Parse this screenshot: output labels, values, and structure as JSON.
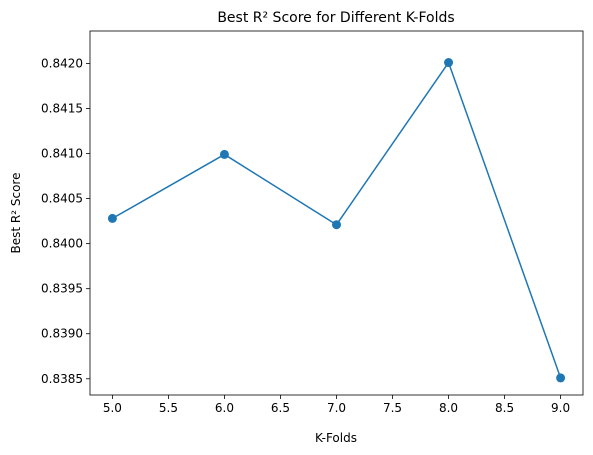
{
  "chart_data": {
    "type": "line",
    "title": "Best R² Score for Different K-Folds",
    "xlabel": "K-Folds",
    "ylabel": "Best R² Score",
    "xlim": [
      4.8,
      9.2
    ],
    "ylim": [
      0.83832,
      0.84236
    ],
    "xticks": [
      5.0,
      5.5,
      6.0,
      6.5,
      7.0,
      7.5,
      8.0,
      8.5,
      9.0
    ],
    "xtick_labels": [
      "5.0",
      "5.5",
      "6.0",
      "6.5",
      "7.0",
      "7.5",
      "8.0",
      "8.5",
      "9.0"
    ],
    "yticks": [
      0.8385,
      0.839,
      0.8395,
      0.84,
      0.8405,
      0.841,
      0.8415,
      0.842
    ],
    "ytick_labels": [
      "0.8385",
      "0.8390",
      "0.8395",
      "0.8400",
      "0.8405",
      "0.8410",
      "0.8415",
      "0.8420"
    ],
    "grid": false,
    "series": [
      {
        "x": [
          5,
          6,
          7,
          8,
          9
        ],
        "y": [
          0.84028,
          0.84099,
          0.84021,
          0.84201,
          0.83851
        ],
        "color": "#1f77b4",
        "marker": "circle"
      }
    ]
  }
}
